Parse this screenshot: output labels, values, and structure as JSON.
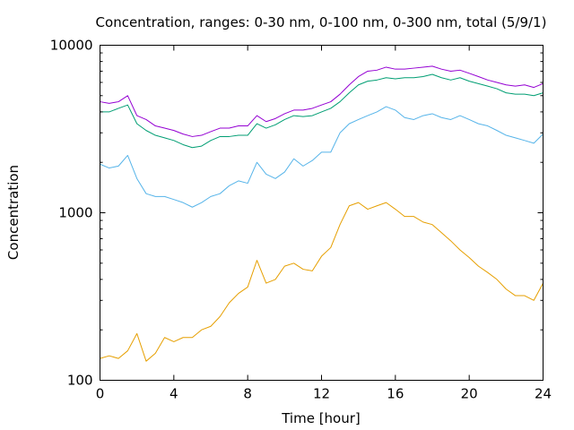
{
  "chart_data": {
    "type": "line",
    "title": "Concentration, ranges: 0-30 nm, 0-100 nm, 0-300 nm, total (5/9/1)",
    "xlabel": "Time [hour]",
    "ylabel": "Concentration",
    "xlim": [
      0,
      24
    ],
    "ylim": [
      100,
      10000
    ],
    "yscale": "log",
    "xticks": [
      0,
      4,
      8,
      12,
      16,
      20,
      24
    ],
    "xtick_labels": [
      "0",
      "4",
      "8",
      "12",
      "16",
      "20",
      "24"
    ],
    "yticks": [
      100,
      1000,
      10000
    ],
    "ytick_labels": [
      "100",
      "1000",
      "10000"
    ],
    "grid": false,
    "x": [
      0,
      0.5,
      1,
      1.5,
      2,
      2.5,
      3,
      3.5,
      4,
      4.5,
      5,
      5.5,
      6,
      6.5,
      7,
      7.5,
      8,
      8.5,
      9,
      9.5,
      10,
      10.5,
      11,
      11.5,
      12,
      12.5,
      13,
      13.5,
      14,
      14.5,
      15,
      15.5,
      16,
      16.5,
      17,
      17.5,
      18,
      18.5,
      19,
      19.5,
      20,
      20.5,
      21,
      21.5,
      22,
      22.5,
      23,
      23.5,
      24
    ],
    "series": [
      {
        "color": "#e69f00",
        "values": [
          135,
          140,
          135,
          150,
          190,
          130,
          145,
          180,
          170,
          180,
          180,
          200,
          210,
          240,
          290,
          330,
          360,
          520,
          380,
          400,
          480,
          500,
          460,
          450,
          550,
          620,
          850,
          1100,
          1150,
          1050,
          1100,
          1150,
          1050,
          950,
          950,
          880,
          850,
          760,
          680,
          600,
          540,
          480,
          440,
          400,
          350,
          320,
          320,
          300,
          380
        ]
      },
      {
        "color": "#56b4e9",
        "values": [
          1950,
          1850,
          1900,
          2200,
          1600,
          1300,
          1250,
          1250,
          1200,
          1150,
          1080,
          1150,
          1250,
          1300,
          1450,
          1550,
          1500,
          2000,
          1700,
          1600,
          1750,
          2100,
          1900,
          2050,
          2300,
          2300,
          3000,
          3400,
          3600,
          3800,
          4000,
          4300,
          4100,
          3700,
          3600,
          3800,
          3900,
          3700,
          3600,
          3800,
          3600,
          3400,
          3300,
          3100,
          2900,
          2800,
          2700,
          2600,
          2950
        ]
      },
      {
        "color": "#009e73",
        "values": [
          4000,
          4000,
          4200,
          4400,
          3400,
          3100,
          2900,
          2800,
          2700,
          2550,
          2450,
          2500,
          2700,
          2850,
          2850,
          2900,
          2900,
          3400,
          3200,
          3350,
          3600,
          3800,
          3750,
          3800,
          4000,
          4200,
          4600,
          5200,
          5800,
          6100,
          6200,
          6400,
          6300,
          6400,
          6400,
          6500,
          6700,
          6400,
          6200,
          6400,
          6100,
          5900,
          5700,
          5500,
          5200,
          5100,
          5100,
          5000,
          5200
        ]
      },
      {
        "color": "#9400d3",
        "values": [
          4600,
          4500,
          4600,
          5000,
          3800,
          3600,
          3300,
          3200,
          3100,
          2950,
          2850,
          2900,
          3050,
          3200,
          3200,
          3300,
          3300,
          3800,
          3500,
          3650,
          3900,
          4100,
          4100,
          4200,
          4400,
          4600,
          5100,
          5800,
          6500,
          7000,
          7100,
          7400,
          7200,
          7200,
          7300,
          7400,
          7500,
          7200,
          7000,
          7100,
          6800,
          6500,
          6200,
          6000,
          5800,
          5700,
          5800,
          5600,
          5900
        ]
      }
    ]
  }
}
